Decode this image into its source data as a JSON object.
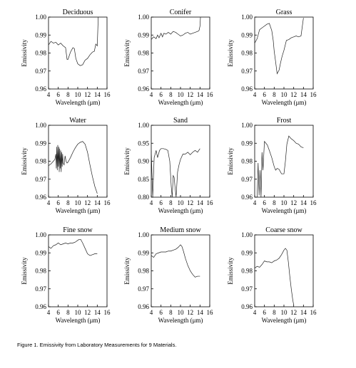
{
  "caption": "Figure 1. Emissivity from Laboratory Measurements for 9 Materials.",
  "chart_data": [
    {
      "type": "line",
      "title": "Deciduous",
      "xlabel": "Wavelength (μm)",
      "ylabel": "Emissivity",
      "xlim": [
        4,
        16
      ],
      "ylim": [
        0.96,
        1.0
      ],
      "xticks": [
        "4",
        "6",
        "8",
        "10",
        "12",
        "14",
        "16"
      ],
      "yticks": [
        "0.96",
        "0.97",
        "0.98",
        "0.99",
        "1.00"
      ],
      "grid": false,
      "series": [
        {
          "x": [
            4,
            4.5,
            5,
            5.5,
            6,
            6.5,
            7,
            7.5,
            7.8,
            8,
            8.5,
            9,
            9.3,
            9.6,
            10,
            10.5,
            11,
            11.5,
            12,
            12.5,
            13,
            13.4,
            13.7,
            14,
            14.1,
            14.2,
            14.3
          ],
          "y": [
            0.9845,
            0.9865,
            0.9855,
            0.986,
            0.9845,
            0.9855,
            0.984,
            0.983,
            0.9765,
            0.9765,
            0.9805,
            0.983,
            0.9825,
            0.977,
            0.974,
            0.973,
            0.9735,
            0.976,
            0.977,
            0.979,
            0.9805,
            0.981,
            0.985,
            0.984,
            0.992,
            1.0,
            1.0
          ]
        }
      ]
    },
    {
      "type": "line",
      "title": "Conifer",
      "xlabel": "Wavelength (μm)",
      "ylabel": "Emissivity",
      "xlim": [
        4,
        16
      ],
      "ylim": [
        0.96,
        1.0
      ],
      "xticks": [
        "4",
        "6",
        "8",
        "10",
        "12",
        "14",
        "16"
      ],
      "yticks": [
        "0.96",
        "0.97",
        "0.98",
        "0.99",
        "1.00"
      ],
      "grid": false,
      "series": [
        {
          "x": [
            4,
            4.5,
            5,
            5.3,
            5.6,
            6,
            6.3,
            6.6,
            7,
            7.5,
            8,
            8.5,
            9,
            9.5,
            10,
            10.5,
            11,
            11.5,
            12,
            12.5,
            13,
            13.5,
            13.8,
            14,
            14.1
          ],
          "y": [
            0.9875,
            0.989,
            0.988,
            0.99,
            0.9885,
            0.991,
            0.989,
            0.991,
            0.9905,
            0.9915,
            0.9905,
            0.992,
            0.9915,
            0.9905,
            0.9895,
            0.99,
            0.991,
            0.9915,
            0.9905,
            0.991,
            0.9915,
            0.992,
            0.9925,
            0.995,
            1.0
          ]
        }
      ]
    },
    {
      "type": "line",
      "title": "Grass",
      "xlabel": "Wavelength (μm)",
      "ylabel": "Emissivity",
      "xlim": [
        4,
        16
      ],
      "ylim": [
        0.96,
        1.0
      ],
      "xticks": [
        "4",
        "6",
        "8",
        "10",
        "12",
        "14",
        "16"
      ],
      "yticks": [
        "0.96",
        "0.97",
        "0.98",
        "0.99",
        "1.00"
      ],
      "grid": false,
      "series": [
        {
          "x": [
            4,
            4.5,
            5,
            5.5,
            6,
            6.5,
            7,
            7.5,
            7.8,
            8,
            8.3,
            8.6,
            9,
            9.3,
            9.6,
            10,
            10.5,
            11,
            11.5,
            12,
            12.5,
            13,
            13.5,
            14
          ],
          "y": [
            0.9855,
            0.988,
            0.993,
            0.994,
            0.995,
            0.996,
            0.9965,
            0.9925,
            0.987,
            0.981,
            0.975,
            0.9685,
            0.9705,
            0.9745,
            0.978,
            0.9815,
            0.987,
            0.9875,
            0.9885,
            0.989,
            0.9895,
            0.989,
            0.9895,
            0.9995
          ]
        }
      ]
    },
    {
      "type": "line",
      "title": "Water",
      "xlabel": "Wavelength (μm)",
      "ylabel": "Emissivity",
      "xlim": [
        4,
        16
      ],
      "ylim": [
        0.96,
        1.0
      ],
      "xticks": [
        "4",
        "6",
        "8",
        "10",
        "12",
        "14",
        "16"
      ],
      "yticks": [
        "0.96",
        "0.97",
        "0.98",
        "0.99",
        "1.00"
      ],
      "grid": false,
      "series": [
        {
          "x": [
            4,
            4.5,
            5,
            5.3,
            5.5,
            5.6,
            5.7,
            5.8,
            5.9,
            6,
            6.1,
            6.2,
            6.3,
            6.4,
            6.5,
            6.6,
            6.7,
            6.8,
            6.9,
            7,
            7.2,
            7.4,
            7.6,
            7.8,
            8,
            8.5,
            9,
            9.5,
            10,
            10.5,
            11,
            11.5,
            12,
            12.5,
            13,
            13.5,
            14
          ],
          "y": [
            0.9775,
            0.9785,
            0.98,
            0.981,
            0.984,
            0.976,
            0.988,
            0.975,
            0.989,
            0.977,
            0.988,
            0.974,
            0.987,
            0.976,
            0.986,
            0.974,
            0.985,
            0.977,
            0.984,
            0.979,
            0.978,
            0.983,
            0.98,
            0.979,
            0.9795,
            0.982,
            0.985,
            0.9875,
            0.9895,
            0.9905,
            0.991,
            0.9895,
            0.985,
            0.978,
            0.9715,
            0.966,
            0.962
          ]
        }
      ]
    },
    {
      "type": "line",
      "title": "Sand",
      "xlabel": "Wavelength (μm)",
      "ylabel": "Emissivity",
      "xlim": [
        4,
        16
      ],
      "ylim": [
        0.8,
        1.0
      ],
      "xticks": [
        "4",
        "6",
        "8",
        "10",
        "12",
        "14",
        "16"
      ],
      "yticks": [
        "0.80",
        "0.85",
        "0.90",
        "0.95",
        "1.00"
      ],
      "grid": false,
      "series": [
        {
          "x": [
            4,
            4.3,
            4.6,
            5,
            5.3,
            5.7,
            6,
            6.5,
            7,
            7.4,
            7.8,
            8.1,
            8.3,
            8.5,
            8.7,
            8.9,
            9.1,
            9.4,
            9.7,
            10,
            10.5,
            11,
            11.5,
            12,
            12.5,
            13,
            13.5,
            14
          ],
          "y": [
            0.93,
            0.8,
            0.91,
            0.93,
            0.91,
            0.93,
            0.935,
            0.935,
            0.933,
            0.93,
            0.9,
            0.83,
            0.8,
            0.86,
            0.855,
            0.825,
            0.8,
            0.87,
            0.89,
            0.905,
            0.92,
            0.92,
            0.925,
            0.918,
            0.925,
            0.93,
            0.925,
            0.935
          ]
        }
      ]
    },
    {
      "type": "line",
      "title": "Frost",
      "xlabel": "Wavelength (μm)",
      "ylabel": "Emissivity",
      "xlim": [
        4,
        16
      ],
      "ylim": [
        0.96,
        1.0
      ],
      "xticks": [
        "4",
        "6",
        "8",
        "10",
        "12",
        "14",
        "16"
      ],
      "yticks": [
        "0.96",
        "0.97",
        "0.98",
        "0.99",
        "1.00"
      ],
      "grid": false,
      "series": [
        {
          "x": [
            4.5,
            4.7,
            4.9,
            5.1,
            5.3,
            5.5,
            5.7,
            6,
            6.3,
            6.6,
            7,
            7.5,
            8,
            8.3,
            8.6,
            9,
            9.5,
            10,
            10.3,
            10.6,
            11,
            11.5,
            12,
            12.5,
            13,
            13.5,
            14
          ],
          "y": [
            0.96,
            0.979,
            0.961,
            0.975,
            0.96,
            0.985,
            0.975,
            0.991,
            0.99,
            0.989,
            0.986,
            0.982,
            0.977,
            0.975,
            0.976,
            0.9755,
            0.973,
            0.973,
            0.98,
            0.9895,
            0.994,
            0.9925,
            0.9915,
            0.99,
            0.9895,
            0.988,
            0.9875
          ]
        }
      ]
    },
    {
      "type": "line",
      "title": "Fine snow",
      "xlabel": "Wavelength (μm)",
      "ylabel": "Emissivity",
      "xlim": [
        4,
        16
      ],
      "ylim": [
        0.96,
        1.0
      ],
      "xticks": [
        "4",
        "6",
        "8",
        "10",
        "12",
        "14",
        "16"
      ],
      "yticks": [
        "0.96",
        "0.97",
        "0.98",
        "0.99",
        "1.00"
      ],
      "grid": false,
      "series": [
        {
          "x": [
            4,
            4.5,
            5,
            5.5,
            6,
            6.5,
            7,
            7.5,
            8,
            8.5,
            9,
            9.5,
            10,
            10.3,
            10.6,
            11,
            11.5,
            12,
            12.5,
            13,
            13.5,
            14
          ],
          "y": [
            0.9935,
            0.9925,
            0.994,
            0.9945,
            0.9955,
            0.9945,
            0.995,
            0.9955,
            0.995,
            0.9955,
            0.9955,
            0.996,
            0.997,
            0.9975,
            0.9975,
            0.9955,
            0.9925,
            0.9895,
            0.9885,
            0.989,
            0.9895,
            0.9895
          ]
        }
      ]
    },
    {
      "type": "line",
      "title": "Medium snow",
      "xlabel": "Wavelength (μm)",
      "ylabel": "Emissivity",
      "xlim": [
        4,
        16
      ],
      "ylim": [
        0.96,
        1.0
      ],
      "xticks": [
        "4",
        "6",
        "8",
        "10",
        "12",
        "14",
        "16"
      ],
      "yticks": [
        "0.96",
        "0.97",
        "0.98",
        "0.99",
        "1.00"
      ],
      "grid": false,
      "series": [
        {
          "x": [
            4,
            4.5,
            5,
            5.5,
            6,
            6.5,
            7,
            7.5,
            8,
            8.5,
            9,
            9.5,
            10,
            10.3,
            10.6,
            11,
            11.5,
            12,
            12.5,
            13,
            13.5,
            14
          ],
          "y": [
            0.9885,
            0.9875,
            0.9895,
            0.99,
            0.9905,
            0.9905,
            0.9905,
            0.991,
            0.991,
            0.9915,
            0.992,
            0.993,
            0.9945,
            0.9935,
            0.991,
            0.987,
            0.983,
            0.98,
            0.978,
            0.9765,
            0.977,
            0.977
          ]
        }
      ]
    },
    {
      "type": "line",
      "title": "Coarse snow",
      "xlabel": "Wavelength (μm)",
      "ylabel": "Emissivity",
      "xlim": [
        4,
        16
      ],
      "ylim": [
        0.96,
        1.0
      ],
      "xticks": [
        "4",
        "6",
        "8",
        "10",
        "12",
        "14",
        "16"
      ],
      "yticks": [
        "0.96",
        "0.97",
        "0.98",
        "0.99",
        "1.00"
      ],
      "grid": false,
      "series": [
        {
          "x": [
            4,
            4.5,
            5,
            5.5,
            6,
            6.5,
            7,
            7.5,
            8,
            8.5,
            9,
            9.5,
            10,
            10.3,
            10.6,
            10.9,
            11.2,
            11.5,
            11.8,
            12
          ],
          "y": [
            0.9815,
            0.9825,
            0.982,
            0.9835,
            0.9855,
            0.985,
            0.985,
            0.9845,
            0.9855,
            0.986,
            0.987,
            0.989,
            0.9915,
            0.9925,
            0.9915,
            0.985,
            0.977,
            0.97,
            0.964,
            0.961
          ]
        }
      ]
    }
  ]
}
